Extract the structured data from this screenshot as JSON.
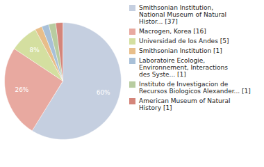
{
  "chart_data": {
    "type": "pie",
    "categories": [
      "Smithsonian Institution,\nNational Museum of Natural\nHistor... [37]",
      "Macrogen, Korea [16]",
      "Universidad de los Andes [5]",
      "Smithsonian Institution [1]",
      "Laboratoire Ecologie,\nEnvironnement, Interactions\ndes Syste... [1]",
      "Instituto de Investigacion de\nRecursos Biologicos Alexander... [1]",
      "American Museum of Natural\nHistory [1]"
    ],
    "values": [
      60,
      26,
      8,
      2,
      2,
      2,
      2
    ],
    "value_labels": [
      "60%",
      "26%",
      "8%",
      null,
      null,
      null,
      null
    ],
    "colors": [
      "#c5cfe0",
      "#e8a9a0",
      "#d4dfa0",
      "#e8be8a",
      "#a8c0d8",
      "#b8cca0",
      "#d4857a"
    ],
    "data_labels": true,
    "legend": "right"
  }
}
